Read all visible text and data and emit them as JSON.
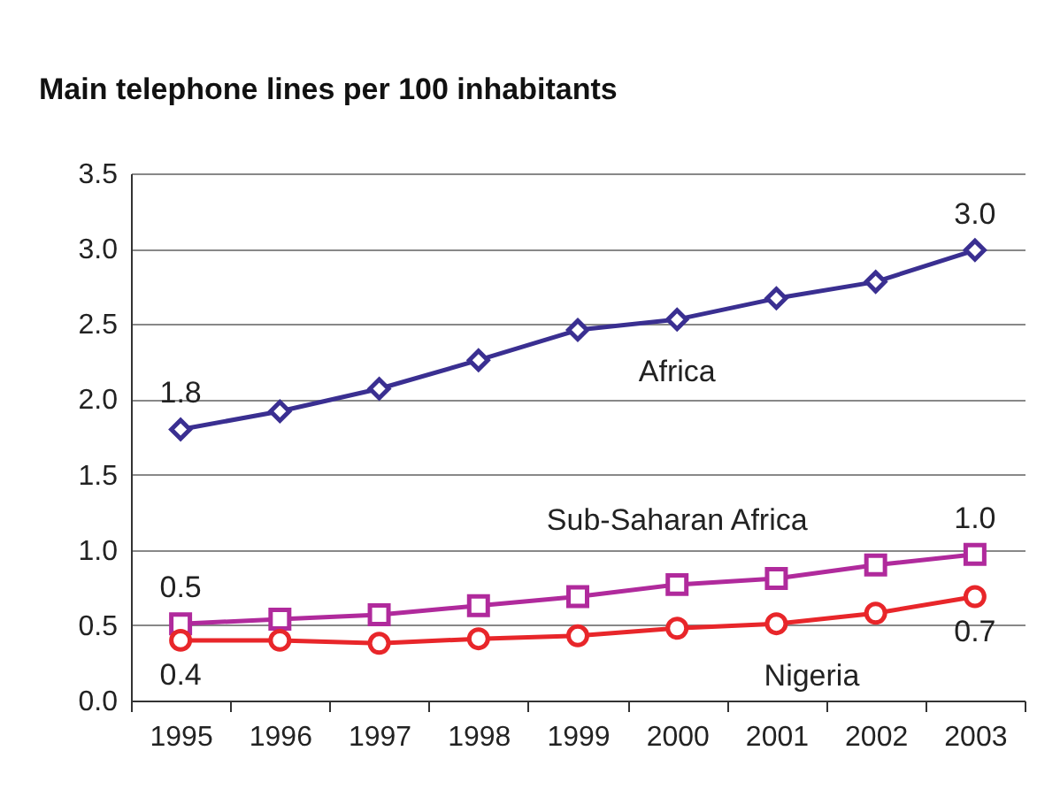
{
  "chart_data": {
    "type": "line",
    "title": "Main telephone lines per 100 inhabitants",
    "categories": [
      "1995",
      "1996",
      "1997",
      "1998",
      "1999",
      "2000",
      "2001",
      "2002",
      "2003"
    ],
    "series": [
      {
        "name": "Africa",
        "color": "#3a2f91",
        "marker": "diamond",
        "values": [
          1.8,
          1.92,
          2.07,
          2.26,
          2.46,
          2.53,
          2.67,
          2.78,
          2.99
        ],
        "value_labels": [
          "1.8",
          null,
          null,
          null,
          null,
          null,
          null,
          null,
          "3.0"
        ]
      },
      {
        "name": "Sub-Saharan Africa",
        "color": "#b02a9c",
        "marker": "square",
        "values": [
          0.51,
          0.54,
          0.57,
          0.63,
          0.69,
          0.77,
          0.81,
          0.9,
          0.97
        ],
        "value_labels": [
          "0.5",
          null,
          null,
          null,
          null,
          null,
          null,
          null,
          "1.0"
        ]
      },
      {
        "name": "Nigeria",
        "color": "#e8262a",
        "marker": "circle",
        "values": [
          0.4,
          0.4,
          0.38,
          0.41,
          0.43,
          0.48,
          0.51,
          0.58,
          0.69
        ],
        "value_labels": [
          "0.4",
          null,
          null,
          null,
          null,
          null,
          null,
          null,
          "0.7"
        ]
      }
    ],
    "ylim": [
      0,
      3.5
    ],
    "yticks": [
      {
        "value": 0,
        "label": "0.0"
      },
      0.5,
      {
        "value": 1,
        "label": "1.0"
      },
      1.5,
      {
        "value": 2,
        "label": "2.0"
      },
      2.5,
      {
        "value": 3,
        "label": "3.0"
      },
      3.5
    ],
    "grid": "y",
    "legend": false
  }
}
